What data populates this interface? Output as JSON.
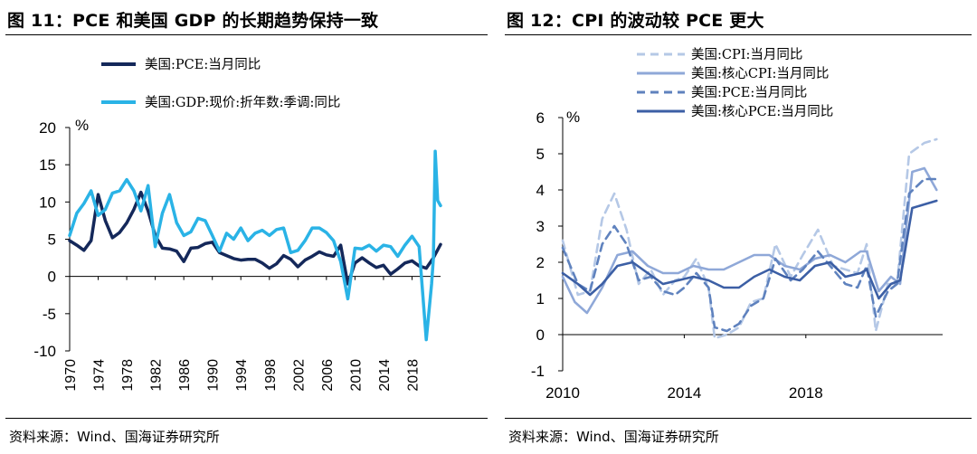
{
  "left": {
    "title": "图 11：PCE 和美国 GDP 的长期趋势保持一致",
    "source": "资料来源：Wind、国海证券研究所"
  },
  "right": {
    "title": "图 12：CPI 的波动较 PCE 更大",
    "source": "资料来源：Wind、国海证券研究所"
  },
  "chart_data": [
    {
      "type": "line",
      "unit": "%",
      "ylim": [
        -10,
        20
      ],
      "yticks": [
        -10,
        -5,
        0,
        5,
        10,
        15,
        20
      ],
      "xlim": [
        1970,
        2022
      ],
      "xticks": [
        1970,
        1974,
        1978,
        1982,
        1986,
        1990,
        1994,
        1998,
        2002,
        2006,
        2010,
        2014,
        2018
      ],
      "legend_position": "top-left",
      "series": [
        {
          "name": "美国:PCE:当月同比",
          "color": "#14285a",
          "points": [
            [
              1970,
              4.8
            ],
            [
              1971,
              4.2
            ],
            [
              1972,
              3.5
            ],
            [
              1973,
              4.8
            ],
            [
              1974,
              11.0
            ],
            [
              1975,
              7.5
            ],
            [
              1976,
              5.2
            ],
            [
              1977,
              5.9
            ],
            [
              1978,
              7.2
            ],
            [
              1979,
              9.0
            ],
            [
              1980,
              11.3
            ],
            [
              1981,
              8.8
            ],
            [
              1982,
              5.5
            ],
            [
              1983,
              3.8
            ],
            [
              1984,
              3.7
            ],
            [
              1985,
              3.4
            ],
            [
              1986,
              2.0
            ],
            [
              1987,
              3.8
            ],
            [
              1988,
              3.9
            ],
            [
              1989,
              4.4
            ],
            [
              1990,
              4.6
            ],
            [
              1991,
              3.2
            ],
            [
              1992,
              2.8
            ],
            [
              1993,
              2.4
            ],
            [
              1994,
              2.2
            ],
            [
              1995,
              2.3
            ],
            [
              1996,
              2.3
            ],
            [
              1997,
              1.8
            ],
            [
              1998,
              1.1
            ],
            [
              1999,
              1.7
            ],
            [
              2000,
              2.8
            ],
            [
              2001,
              2.3
            ],
            [
              2002,
              1.3
            ],
            [
              2003,
              2.2
            ],
            [
              2004,
              2.7
            ],
            [
              2005,
              3.3
            ],
            [
              2006,
              2.9
            ],
            [
              2007,
              2.7
            ],
            [
              2008,
              4.2
            ],
            [
              2009,
              -1.0
            ],
            [
              2010,
              1.8
            ],
            [
              2011,
              2.5
            ],
            [
              2012,
              1.8
            ],
            [
              2013,
              1.2
            ],
            [
              2014,
              1.5
            ],
            [
              2015,
              0.3
            ],
            [
              2016,
              1.0
            ],
            [
              2017,
              1.8
            ],
            [
              2018,
              2.1
            ],
            [
              2019,
              1.4
            ],
            [
              2020,
              1.1
            ],
            [
              2021,
              2.5
            ],
            [
              2022,
              4.3
            ]
          ]
        },
        {
          "name": "美国:GDP:现价:折年数:季调:同比",
          "color": "#2ab3e6",
          "points": [
            [
              1970,
              5.5
            ],
            [
              1971,
              8.5
            ],
            [
              1972,
              9.8
            ],
            [
              1973,
              11.5
            ],
            [
              1974,
              8.2
            ],
            [
              1975,
              9.0
            ],
            [
              1976,
              11.2
            ],
            [
              1977,
              11.5
            ],
            [
              1978,
              13.0
            ],
            [
              1979,
              11.5
            ],
            [
              1980,
              8.8
            ],
            [
              1981,
              12.2
            ],
            [
              1982,
              4.0
            ],
            [
              1983,
              8.5
            ],
            [
              1984,
              11.0
            ],
            [
              1985,
              7.2
            ],
            [
              1986,
              5.5
            ],
            [
              1987,
              6.0
            ],
            [
              1988,
              7.8
            ],
            [
              1989,
              7.5
            ],
            [
              1990,
              5.5
            ],
            [
              1991,
              3.4
            ],
            [
              1992,
              5.8
            ],
            [
              1993,
              5.0
            ],
            [
              1994,
              6.5
            ],
            [
              1995,
              4.8
            ],
            [
              1996,
              5.8
            ],
            [
              1997,
              6.2
            ],
            [
              1998,
              5.5
            ],
            [
              1999,
              6.3
            ],
            [
              2000,
              6.5
            ],
            [
              2001,
              3.2
            ],
            [
              2002,
              3.5
            ],
            [
              2003,
              4.8
            ],
            [
              2004,
              6.5
            ],
            [
              2005,
              6.5
            ],
            [
              2006,
              5.9
            ],
            [
              2007,
              4.8
            ],
            [
              2008,
              2.0
            ],
            [
              2009,
              -3.0
            ],
            [
              2010,
              3.8
            ],
            [
              2011,
              3.7
            ],
            [
              2012,
              4.2
            ],
            [
              2013,
              3.4
            ],
            [
              2014,
              4.2
            ],
            [
              2015,
              4.0
            ],
            [
              2016,
              2.7
            ],
            [
              2017,
              4.2
            ],
            [
              2018,
              5.4
            ],
            [
              2019,
              4.0
            ],
            [
              2020,
              -8.5
            ],
            [
              2020.75,
              -1.0
            ],
            [
              2021,
              2.5
            ],
            [
              2021.25,
              16.8
            ],
            [
              2021.6,
              10.2
            ],
            [
              2022,
              9.5
            ]
          ]
        }
      ]
    },
    {
      "type": "line",
      "unit": "%",
      "ylim": [
        -1,
        6
      ],
      "yticks": [
        -1,
        0,
        1,
        2,
        3,
        4,
        5,
        6
      ],
      "xlim": [
        2010,
        2022.5
      ],
      "xticks": [
        2010,
        2014,
        2018
      ],
      "legend_position": "top-left",
      "series": [
        {
          "name": "美国:CPI:当月同比",
          "color": "#b5c8e6",
          "dash": "dashed",
          "points": [
            [
              2010,
              2.6
            ],
            [
              2010.5,
              1.1
            ],
            [
              2010.9,
              1.2
            ],
            [
              2011.3,
              3.2
            ],
            [
              2011.7,
              3.9
            ],
            [
              2012.1,
              2.9
            ],
            [
              2012.5,
              1.4
            ],
            [
              2012.9,
              1.8
            ],
            [
              2013.3,
              1.1
            ],
            [
              2013.7,
              1.5
            ],
            [
              2014.0,
              1.6
            ],
            [
              2014.4,
              2.1
            ],
            [
              2014.8,
              1.3
            ],
            [
              2015.0,
              -0.1
            ],
            [
              2015.4,
              0.0
            ],
            [
              2015.8,
              0.2
            ],
            [
              2016.2,
              0.9
            ],
            [
              2016.6,
              1.0
            ],
            [
              2017.0,
              2.5
            ],
            [
              2017.5,
              1.6
            ],
            [
              2017.9,
              2.2
            ],
            [
              2018.4,
              2.9
            ],
            [
              2018.9,
              1.9
            ],
            [
              2019.3,
              1.8
            ],
            [
              2019.7,
              1.7
            ],
            [
              2020.0,
              2.5
            ],
            [
              2020.3,
              0.1
            ],
            [
              2020.7,
              1.4
            ],
            [
              2021.0,
              1.4
            ],
            [
              2021.4,
              5.0
            ],
            [
              2021.9,
              5.3
            ],
            [
              2022.3,
              5.4
            ]
          ]
        },
        {
          "name": "美国:核心CPI:当月同比",
          "color": "#8fa8d8",
          "dash": "solid",
          "points": [
            [
              2010,
              1.6
            ],
            [
              2010.4,
              0.9
            ],
            [
              2010.8,
              0.6
            ],
            [
              2011.3,
              1.3
            ],
            [
              2011.8,
              2.2
            ],
            [
              2012.3,
              2.3
            ],
            [
              2012.8,
              1.9
            ],
            [
              2013.3,
              1.7
            ],
            [
              2013.8,
              1.7
            ],
            [
              2014.3,
              1.9
            ],
            [
              2014.8,
              1.8
            ],
            [
              2015.3,
              1.8
            ],
            [
              2015.8,
              2.0
            ],
            [
              2016.3,
              2.2
            ],
            [
              2016.8,
              2.2
            ],
            [
              2017.3,
              1.9
            ],
            [
              2017.8,
              1.8
            ],
            [
              2018.3,
              2.1
            ],
            [
              2018.8,
              2.2
            ],
            [
              2019.3,
              2.0
            ],
            [
              2019.8,
              2.3
            ],
            [
              2020.0,
              2.3
            ],
            [
              2020.4,
              1.2
            ],
            [
              2020.8,
              1.6
            ],
            [
              2021.1,
              1.4
            ],
            [
              2021.5,
              4.5
            ],
            [
              2021.9,
              4.6
            ],
            [
              2022.3,
              4.0
            ]
          ]
        },
        {
          "name": "美国:PCE:当月同比",
          "color": "#5f82be",
          "dash": "dashed",
          "points": [
            [
              2010,
              2.4
            ],
            [
              2010.5,
              1.4
            ],
            [
              2010.9,
              1.2
            ],
            [
              2011.3,
              2.5
            ],
            [
              2011.7,
              3.0
            ],
            [
              2012.1,
              2.5
            ],
            [
              2012.5,
              1.5
            ],
            [
              2012.9,
              1.6
            ],
            [
              2013.3,
              1.2
            ],
            [
              2013.7,
              1.1
            ],
            [
              2014.0,
              1.3
            ],
            [
              2014.4,
              1.7
            ],
            [
              2014.8,
              1.3
            ],
            [
              2015.0,
              0.2
            ],
            [
              2015.4,
              0.1
            ],
            [
              2015.8,
              0.3
            ],
            [
              2016.2,
              0.8
            ],
            [
              2016.6,
              1.0
            ],
            [
              2017.0,
              2.1
            ],
            [
              2017.5,
              1.5
            ],
            [
              2017.9,
              1.8
            ],
            [
              2018.4,
              2.3
            ],
            [
              2018.9,
              1.8
            ],
            [
              2019.3,
              1.4
            ],
            [
              2019.7,
              1.3
            ],
            [
              2020.0,
              1.9
            ],
            [
              2020.3,
              0.5
            ],
            [
              2020.7,
              1.2
            ],
            [
              2021.0,
              1.4
            ],
            [
              2021.4,
              3.9
            ],
            [
              2021.9,
              4.3
            ],
            [
              2022.3,
              4.3
            ]
          ]
        },
        {
          "name": "美国:核心PCE:当月同比",
          "color": "#3c5fa5",
          "dash": "solid",
          "points": [
            [
              2010,
              1.7
            ],
            [
              2010.5,
              1.4
            ],
            [
              2010.9,
              1.1
            ],
            [
              2011.3,
              1.4
            ],
            [
              2011.8,
              1.9
            ],
            [
              2012.3,
              2.0
            ],
            [
              2012.8,
              1.7
            ],
            [
              2013.3,
              1.4
            ],
            [
              2013.8,
              1.5
            ],
            [
              2014.3,
              1.6
            ],
            [
              2014.8,
              1.5
            ],
            [
              2015.3,
              1.3
            ],
            [
              2015.8,
              1.3
            ],
            [
              2016.3,
              1.6
            ],
            [
              2016.8,
              1.8
            ],
            [
              2017.3,
              1.6
            ],
            [
              2017.8,
              1.5
            ],
            [
              2018.3,
              1.9
            ],
            [
              2018.8,
              2.0
            ],
            [
              2019.3,
              1.6
            ],
            [
              2019.8,
              1.7
            ],
            [
              2020.0,
              1.8
            ],
            [
              2020.4,
              1.0
            ],
            [
              2020.8,
              1.4
            ],
            [
              2021.1,
              1.5
            ],
            [
              2021.5,
              3.5
            ],
            [
              2021.9,
              3.6
            ],
            [
              2022.3,
              3.7
            ]
          ]
        }
      ]
    }
  ]
}
